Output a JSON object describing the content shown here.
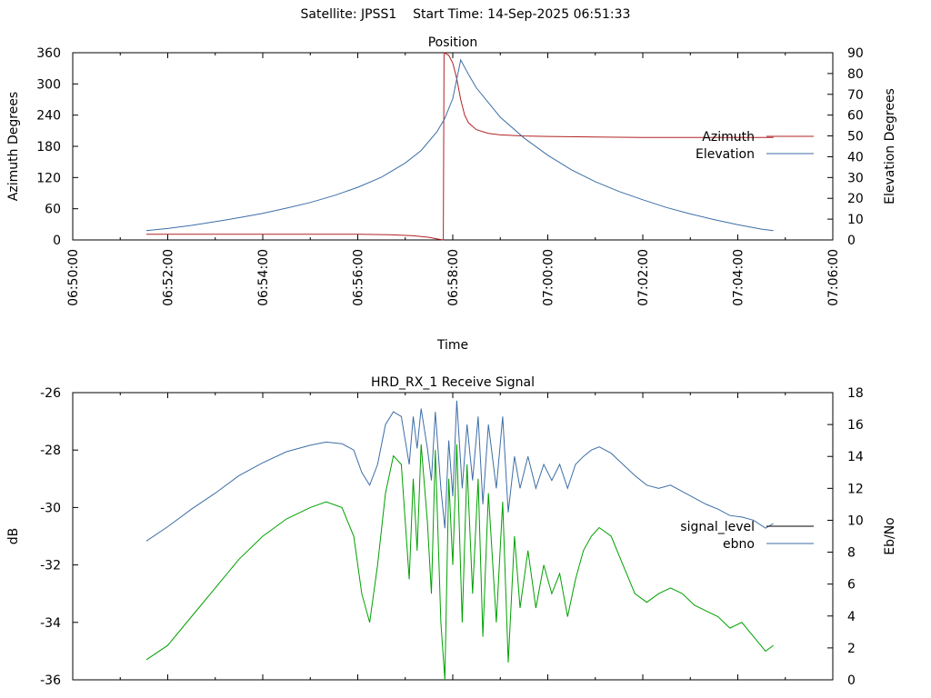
{
  "header": {
    "title": "Satellite: JPSS1    Start Time: 14-Sep-2025 06:51:33"
  },
  "chart_data": [
    {
      "type": "line",
      "title": "Position",
      "xlabel": "Time",
      "ylabel": "Azimuth Degrees",
      "y2label": "Elevation Degrees",
      "xlim": [
        "06:50:00",
        "07:06:00"
      ],
      "ylim": [
        0,
        360
      ],
      "y2lim": [
        0,
        90
      ],
      "x_ticks": [
        "06:50:00",
        "06:52:00",
        "06:54:00",
        "06:56:00",
        "06:58:00",
        "07:00:00",
        "07:02:00",
        "07:04:00",
        "07:06:00"
      ],
      "y_ticks": [
        0,
        60,
        120,
        180,
        240,
        300,
        360
      ],
      "y2_ticks": [
        0,
        10,
        20,
        30,
        40,
        50,
        60,
        70,
        80,
        90
      ],
      "legend_position": "right",
      "grid": false,
      "series": [
        {
          "name": "Azimuth",
          "axis": "left",
          "color": "#b22222",
          "points": [
            [
              "06:51:33",
              11
            ],
            [
              "06:53:00",
              11
            ],
            [
              "06:54:30",
              11
            ],
            [
              "06:56:00",
              11
            ],
            [
              "06:56:40",
              10
            ],
            [
              "06:57:10",
              8
            ],
            [
              "06:57:30",
              5
            ],
            [
              "06:57:40",
              2
            ],
            [
              "06:57:48",
              0
            ],
            [
              "06:57:49",
              360
            ],
            [
              "06:57:55",
              355
            ],
            [
              "06:58:00",
              340
            ],
            [
              "06:58:05",
              310
            ],
            [
              "06:58:10",
              270
            ],
            [
              "06:58:15",
              240
            ],
            [
              "06:58:20",
              225
            ],
            [
              "06:58:30",
              212
            ],
            [
              "06:58:45",
              205
            ],
            [
              "06:59:00",
              202
            ],
            [
              "06:59:30",
              200
            ],
            [
              "07:00:00",
              199
            ],
            [
              "07:01:00",
              198
            ],
            [
              "07:02:00",
              197
            ],
            [
              "07:03:00",
              197
            ],
            [
              "07:04:00",
              197
            ],
            [
              "07:04:45",
              197
            ]
          ]
        },
        {
          "name": "Elevation",
          "axis": "right",
          "color": "#3d6ea6",
          "points": [
            [
              "06:51:33",
              4.5
            ],
            [
              "06:52:00",
              5.5
            ],
            [
              "06:52:30",
              7
            ],
            [
              "06:53:00",
              8.8
            ],
            [
              "06:53:30",
              10.7
            ],
            [
              "06:54:00",
              12.8
            ],
            [
              "06:54:30",
              15.3
            ],
            [
              "06:55:00",
              18
            ],
            [
              "06:55:30",
              21.3
            ],
            [
              "06:56:00",
              25.3
            ],
            [
              "06:56:30",
              30.2
            ],
            [
              "06:57:00",
              37
            ],
            [
              "06:57:20",
              43
            ],
            [
              "06:57:40",
              52
            ],
            [
              "06:57:50",
              58.5
            ],
            [
              "06:58:00",
              68
            ],
            [
              "06:58:10",
              86.5
            ],
            [
              "06:58:20",
              79.5
            ],
            [
              "06:58:30",
              73
            ],
            [
              "06:58:45",
              66
            ],
            [
              "06:59:00",
              59
            ],
            [
              "06:59:30",
              49
            ],
            [
              "07:00:00",
              40.7
            ],
            [
              "07:00:30",
              33.7
            ],
            [
              "07:01:00",
              28
            ],
            [
              "07:01:30",
              23.3
            ],
            [
              "07:02:00",
              19.3
            ],
            [
              "07:02:30",
              15.6
            ],
            [
              "07:03:00",
              12.5
            ],
            [
              "07:03:30",
              9.8
            ],
            [
              "07:04:00",
              7.3
            ],
            [
              "07:04:30",
              5.2
            ],
            [
              "07:04:45",
              4.5
            ]
          ]
        }
      ]
    },
    {
      "type": "line",
      "title": "HRD_RX_1 Receive Signal",
      "ylabel": "dB",
      "y2label": "Eb/No",
      "xlim": [
        "06:50:00",
        "07:06:00"
      ],
      "ylim": [
        -36,
        -26
      ],
      "y2lim": [
        0,
        18
      ],
      "y_ticks": [
        -26,
        -28,
        -30,
        -32,
        -34,
        -36
      ],
      "y2_ticks": [
        0,
        2,
        4,
        6,
        8,
        10,
        12,
        14,
        16,
        18
      ],
      "legend_position": "right",
      "grid": false,
      "series": [
        {
          "name": "signal_level",
          "axis": "left",
          "color": "#00a000",
          "points": [
            [
              "06:51:33",
              -35.3
            ],
            [
              "06:52:00",
              -34.8
            ],
            [
              "06:52:30",
              -33.8
            ],
            [
              "06:53:00",
              -32.8
            ],
            [
              "06:53:30",
              -31.8
            ],
            [
              "06:54:00",
              -31.0
            ],
            [
              "06:54:30",
              -30.4
            ],
            [
              "06:55:00",
              -30.0
            ],
            [
              "06:55:20",
              -29.8
            ],
            [
              "06:55:40",
              -30.0
            ],
            [
              "06:55:55",
              -31.0
            ],
            [
              "06:56:05",
              -33.0
            ],
            [
              "06:56:15",
              -34.0
            ],
            [
              "06:56:25",
              -32.0
            ],
            [
              "06:56:35",
              -29.5
            ],
            [
              "06:56:45",
              -28.2
            ],
            [
              "06:56:55",
              -28.5
            ],
            [
              "06:57:05",
              -32.5
            ],
            [
              "06:57:10",
              -29.0
            ],
            [
              "06:57:15",
              -31.5
            ],
            [
              "06:57:20",
              -27.8
            ],
            [
              "06:57:28",
              -30.5
            ],
            [
              "06:57:33",
              -33.0
            ],
            [
              "06:57:38",
              -28.0
            ],
            [
              "06:57:45",
              -34.0
            ],
            [
              "06:57:50",
              -36.0
            ],
            [
              "06:57:55",
              -29.0
            ],
            [
              "06:58:00",
              -32.0
            ],
            [
              "06:58:05",
              -27.8
            ],
            [
              "06:58:12",
              -34.0
            ],
            [
              "06:58:18",
              -28.5
            ],
            [
              "06:58:25",
              -33.0
            ],
            [
              "06:58:32",
              -29.0
            ],
            [
              "06:58:38",
              -34.5
            ],
            [
              "06:58:45",
              -29.5
            ],
            [
              "06:58:55",
              -34.0
            ],
            [
              "06:59:03",
              -29.8
            ],
            [
              "06:59:10",
              -35.4
            ],
            [
              "06:59:18",
              -31.0
            ],
            [
              "06:59:25",
              -33.5
            ],
            [
              "06:59:35",
              -31.5
            ],
            [
              "06:59:45",
              -33.5
            ],
            [
              "06:59:55",
              -32.0
            ],
            [
              "07:00:05",
              -33.0
            ],
            [
              "07:00:15",
              -32.3
            ],
            [
              "07:00:25",
              -33.8
            ],
            [
              "07:00:35",
              -32.5
            ],
            [
              "07:00:45",
              -31.5
            ],
            [
              "07:00:55",
              -31.0
            ],
            [
              "07:01:05",
              -30.7
            ],
            [
              "07:01:20",
              -31.0
            ],
            [
              "07:01:35",
              -32.0
            ],
            [
              "07:01:50",
              -33.0
            ],
            [
              "07:02:05",
              -33.3
            ],
            [
              "07:02:20",
              -33.0
            ],
            [
              "07:02:35",
              -32.8
            ],
            [
              "07:02:50",
              -33.0
            ],
            [
              "07:03:05",
              -33.4
            ],
            [
              "07:03:20",
              -33.6
            ],
            [
              "07:03:35",
              -33.8
            ],
            [
              "07:03:50",
              -34.2
            ],
            [
              "07:04:05",
              -34.0
            ],
            [
              "07:04:20",
              -34.5
            ],
            [
              "07:04:35",
              -35.0
            ],
            [
              "07:04:45",
              -34.8
            ]
          ]
        },
        {
          "name": "ebno",
          "axis": "right",
          "color": "#3d6ea6",
          "points": [
            [
              "06:51:33",
              8.7
            ],
            [
              "06:52:00",
              9.6
            ],
            [
              "06:52:30",
              10.7
            ],
            [
              "06:53:00",
              11.7
            ],
            [
              "06:53:30",
              12.8
            ],
            [
              "06:54:00",
              13.6
            ],
            [
              "06:54:30",
              14.3
            ],
            [
              "06:55:00",
              14.7
            ],
            [
              "06:55:20",
              14.9
            ],
            [
              "06:55:40",
              14.8
            ],
            [
              "06:55:55",
              14.4
            ],
            [
              "06:56:05",
              13.0
            ],
            [
              "06:56:15",
              12.2
            ],
            [
              "06:56:25",
              13.5
            ],
            [
              "06:56:35",
              16.0
            ],
            [
              "06:56:45",
              16.8
            ],
            [
              "06:56:55",
              16.5
            ],
            [
              "06:57:05",
              13.5
            ],
            [
              "06:57:10",
              16.5
            ],
            [
              "06:57:15",
              14.5
            ],
            [
              "06:57:20",
              17.0
            ],
            [
              "06:57:28",
              14.5
            ],
            [
              "06:57:33",
              12.5
            ],
            [
              "06:57:38",
              16.8
            ],
            [
              "06:57:45",
              12.0
            ],
            [
              "06:57:50",
              9.5
            ],
            [
              "06:57:55",
              15.0
            ],
            [
              "06:58:00",
              11.5
            ],
            [
              "06:58:05",
              17.5
            ],
            [
              "06:58:12",
              12.0
            ],
            [
              "06:58:18",
              16.0
            ],
            [
              "06:58:25",
              12.5
            ],
            [
              "06:58:32",
              16.5
            ],
            [
              "06:58:38",
              11.0
            ],
            [
              "06:58:45",
              16.0
            ],
            [
              "06:58:55",
              12.0
            ],
            [
              "06:59:03",
              16.5
            ],
            [
              "06:59:10",
              10.5
            ],
            [
              "06:59:18",
              14.0
            ],
            [
              "06:59:25",
              12.0
            ],
            [
              "06:59:35",
              14.0
            ],
            [
              "06:59:45",
              12.0
            ],
            [
              "06:59:55",
              13.5
            ],
            [
              "07:00:05",
              12.5
            ],
            [
              "07:00:15",
              13.5
            ],
            [
              "07:00:25",
              12.0
            ],
            [
              "07:00:35",
              13.5
            ],
            [
              "07:00:45",
              14.0
            ],
            [
              "07:00:55",
              14.4
            ],
            [
              "07:01:05",
              14.6
            ],
            [
              "07:01:20",
              14.2
            ],
            [
              "07:01:35",
              13.5
            ],
            [
              "07:01:50",
              12.8
            ],
            [
              "07:02:05",
              12.2
            ],
            [
              "07:02:20",
              12.0
            ],
            [
              "07:02:35",
              12.2
            ],
            [
              "07:02:50",
              11.8
            ],
            [
              "07:03:05",
              11.4
            ],
            [
              "07:03:20",
              11.0
            ],
            [
              "07:03:35",
              10.7
            ],
            [
              "07:03:50",
              10.3
            ],
            [
              "07:04:05",
              10.2
            ],
            [
              "07:04:20",
              10.0
            ],
            [
              "07:04:35",
              9.5
            ],
            [
              "07:04:45",
              9.8
            ]
          ]
        }
      ]
    }
  ]
}
